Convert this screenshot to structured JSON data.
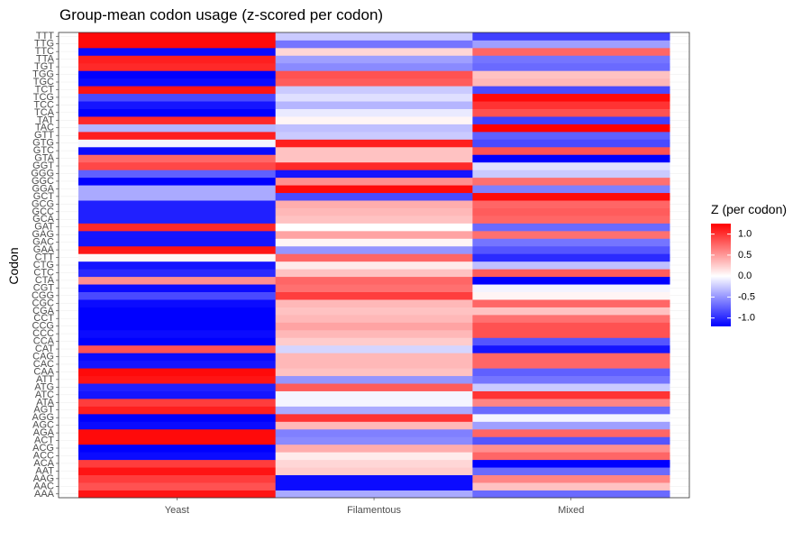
{
  "chart_data": {
    "type": "heatmap",
    "title": "Group-mean codon usage (z-scored per codon)",
    "xlabel": "",
    "ylabel": "Codon",
    "x": [
      "Yeast",
      "Filamentous",
      "Mixed"
    ],
    "y": [
      "AAA",
      "AAC",
      "AAG",
      "AAT",
      "ACA",
      "ACC",
      "ACG",
      "ACT",
      "AGA",
      "AGC",
      "AGG",
      "AGT",
      "ATA",
      "ATC",
      "ATG",
      "ATT",
      "CAA",
      "CAC",
      "CAG",
      "CAT",
      "CCA",
      "CCC",
      "CCG",
      "CCT",
      "CGA",
      "CGC",
      "CGG",
      "CGT",
      "CTA",
      "CTC",
      "CTG",
      "CTT",
      "GAA",
      "GAC",
      "GAG",
      "GAT",
      "GCA",
      "GCC",
      "GCG",
      "GCT",
      "GGA",
      "GGC",
      "GGG",
      "GGT",
      "GTA",
      "GTC",
      "GTG",
      "GTT",
      "TAC",
      "TAT",
      "TCA",
      "TCC",
      "TCG",
      "TCT",
      "TGC",
      "TGG",
      "TGT",
      "TTA",
      "TTC",
      "TTG",
      "TTT"
    ],
    "values": [
      [
        1.15,
        -0.4,
        -0.7
      ],
      [
        0.85,
        -1.15,
        0.3
      ],
      [
        0.95,
        -1.15,
        0.6
      ],
      [
        1.15,
        0.25,
        -0.7
      ],
      [
        0.95,
        0.2,
        -1.2
      ],
      [
        -1.15,
        0.1,
        0.75
      ],
      [
        -1.2,
        0.4,
        0.55
      ],
      [
        1.2,
        -0.55,
        -0.8
      ],
      [
        1.2,
        -0.6,
        0.75
      ],
      [
        -1.15,
        0.35,
        -0.45
      ],
      [
        -1.2,
        1.0,
        -0.05
      ],
      [
        1.1,
        -0.4,
        -0.7
      ],
      [
        0.95,
        -0.05,
        0.6
      ],
      [
        -1.1,
        -0.05,
        1.0
      ],
      [
        -1.05,
        0.8,
        -0.25
      ],
      [
        1.15,
        -0.5,
        -0.65
      ],
      [
        1.2,
        0.3,
        -0.75
      ],
      [
        -1.1,
        0.35,
        0.75
      ],
      [
        -1.15,
        0.35,
        0.75
      ],
      [
        0.85,
        -0.2,
        -1.1
      ],
      [
        -1.2,
        0.25,
        -0.8
      ],
      [
        -1.15,
        0.35,
        0.85
      ],
      [
        -1.2,
        0.45,
        0.85
      ],
      [
        -1.2,
        0.35,
        0.7
      ],
      [
        -1.2,
        0.3,
        0.3
      ],
      [
        -1.15,
        0.35,
        0.75
      ],
      [
        -0.85,
        0.95,
        0.05
      ],
      [
        -1.15,
        0.7,
        -0.05
      ],
      [
        0.55,
        0.75,
        -1.2
      ],
      [
        -1.0,
        0.3,
        0.8
      ],
      [
        -1.1,
        0.1,
        -0.3
      ],
      [
        0.05,
        0.75,
        -1.0
      ],
      [
        1.15,
        -0.5,
        -0.8
      ],
      [
        -1.1,
        0.05,
        -0.65
      ],
      [
        -1.1,
        0.45,
        0.7
      ],
      [
        1.05,
        0.0,
        -0.7
      ],
      [
        -1.05,
        0.3,
        0.75
      ],
      [
        -1.05,
        0.35,
        0.8
      ],
      [
        -1.05,
        0.4,
        0.75
      ],
      [
        -0.4,
        -0.85,
        1.2
      ],
      [
        -0.4,
        1.2,
        -0.6
      ],
      [
        -1.2,
        0.55,
        0.7
      ],
      [
        -0.75,
        -1.1,
        -0.25
      ],
      [
        0.9,
        1.05,
        -0.15
      ],
      [
        0.75,
        0.3,
        -1.2
      ],
      [
        -1.15,
        0.3,
        0.85
      ],
      [
        -0.05,
        1.1,
        -0.85
      ],
      [
        1.1,
        -0.25,
        -0.75
      ],
      [
        -0.35,
        -0.3,
        1.25
      ],
      [
        1.05,
        0.05,
        -0.9
      ],
      [
        -1.2,
        -0.1,
        0.85
      ],
      [
        -1.1,
        -0.35,
        1.0
      ],
      [
        -0.85,
        -0.15,
        1.2
      ],
      [
        1.15,
        -0.25,
        -0.85
      ],
      [
        -1.15,
        0.8,
        0.35
      ],
      [
        -1.2,
        0.85,
        0.3
      ],
      [
        1.05,
        -0.55,
        -0.7
      ],
      [
        1.1,
        -0.45,
        -0.65
      ],
      [
        -1.15,
        0.2,
        0.75
      ],
      [
        1.2,
        -0.65,
        -0.45
      ],
      [
        1.2,
        -0.25,
        -0.9
      ]
    ],
    "zlim": [
      -1.2,
      1.25
    ],
    "colors": {
      "low": "#0000ff",
      "mid": "#ffffff",
      "high": "#ff0000"
    },
    "legend": {
      "title": "Z (per codon)",
      "position": "right",
      "breaks": [
        1.0,
        0.5,
        0.0,
        -0.5,
        -1.0
      ],
      "labels": [
        "1.0",
        "0.5",
        "0.0",
        "-0.5",
        "-1.0"
      ]
    },
    "grid": true
  }
}
